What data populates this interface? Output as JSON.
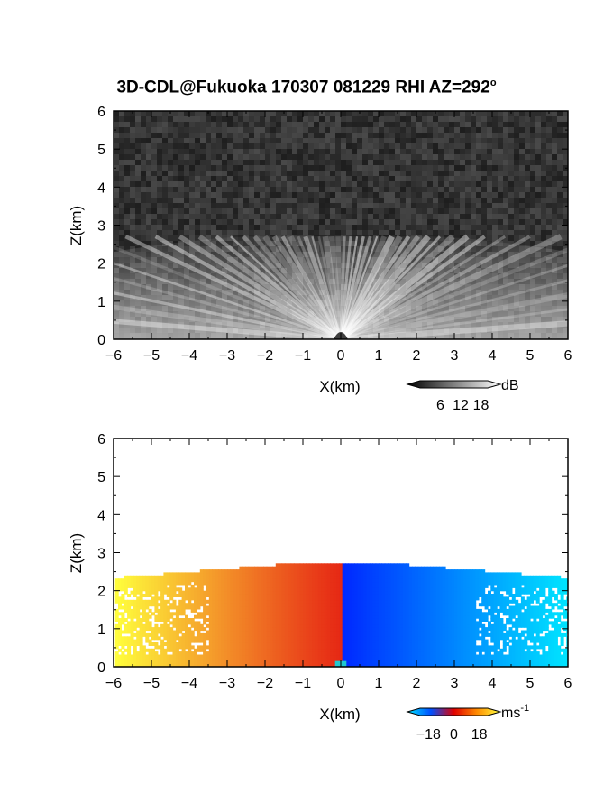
{
  "title": {
    "text": "3D-CDL@Fukuoka 170307 081229 RHI AZ=292",
    "suffix": "o"
  },
  "chart_data": [
    {
      "type": "heatmap",
      "name": "reflectivity",
      "xlabel": "X(km)",
      "ylabel": "Z(km)",
      "xlim": [
        -6,
        6
      ],
      "ylim": [
        0,
        6
      ],
      "xticks": [
        "-6",
        "-5",
        "-4",
        "-3",
        "-2",
        "-1",
        "0",
        "1",
        "2",
        "3",
        "4",
        "5",
        "6"
      ],
      "yticks": [
        "0",
        "1",
        "2",
        "3",
        "4",
        "5",
        "6"
      ],
      "echo_top_km": 2.7,
      "colorbar": {
        "unit": "dB",
        "ticks": [
          "6",
          "12",
          "18"
        ],
        "range": [
          0,
          20
        ],
        "colors": [
          "#000000",
          "#ffffff"
        ]
      },
      "background": "#2e2e2e"
    },
    {
      "type": "heatmap",
      "name": "doppler_velocity",
      "xlabel": "X(km)",
      "ylabel": "Z(km)",
      "xlim": [
        -6,
        6
      ],
      "ylim": [
        0,
        6
      ],
      "xticks": [
        "-6",
        "-5",
        "-4",
        "-3",
        "-2",
        "-1",
        "0",
        "1",
        "2",
        "3",
        "4",
        "5",
        "6"
      ],
      "yticks": [
        "0",
        "1",
        "2",
        "3",
        "4",
        "5",
        "6"
      ],
      "echo_top_km": 2.7,
      "colorbar": {
        "unit": "ms",
        "unit_exp": "-1",
        "ticks": [
          "−18",
          "0",
          "18"
        ],
        "range": [
          -24,
          24
        ],
        "colors": [
          "#00e5ff",
          "#0050ff",
          "#e00000",
          "#ff8c00",
          "#ffff40"
        ]
      }
    }
  ]
}
